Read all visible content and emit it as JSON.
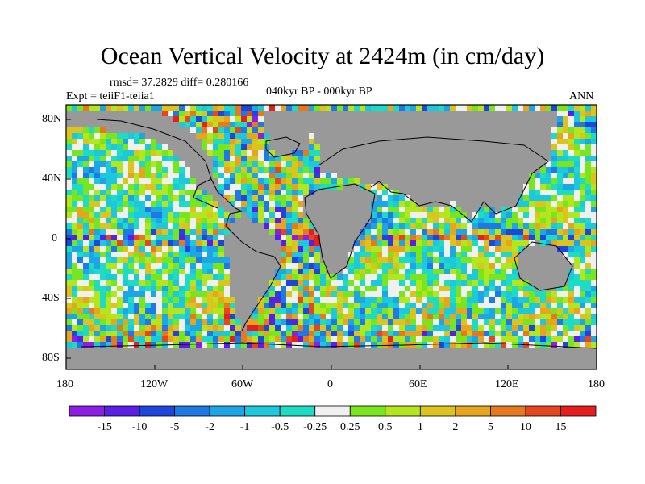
{
  "title": "Ocean Vertical Velocity at 2424m (in cm/day)",
  "stats": "rmsd= 37.2829 diff= 0.280166",
  "expt": "Expt = teiiF1-teiia1",
  "period": "040kyr BP - 000kyr BP",
  "season": "ANN",
  "lat_ticks": [
    "80N",
    "40N",
    "0",
    "40S",
    "80S"
  ],
  "lon_ticks": [
    "180",
    "120W",
    "60W",
    "0",
    "60E",
    "120E",
    "180"
  ],
  "colorbar": {
    "colors": [
      "#8c1ee6",
      "#5a1ee6",
      "#1e46dc",
      "#1e78e6",
      "#1ea5e6",
      "#1ec8dc",
      "#1edcc3",
      "#f0f0f0",
      "#78e61e",
      "#b4e61e",
      "#dcc31e",
      "#e6a51e",
      "#e6781e",
      "#e6461e",
      "#e61e1e"
    ],
    "labels": [
      "-15",
      "-10",
      "-5",
      "-2",
      "-1",
      "-0.5",
      "-0.25",
      "0.25",
      "0.5",
      "1",
      "2",
      "5",
      "10",
      "15"
    ]
  },
  "land_color": "#999999"
}
